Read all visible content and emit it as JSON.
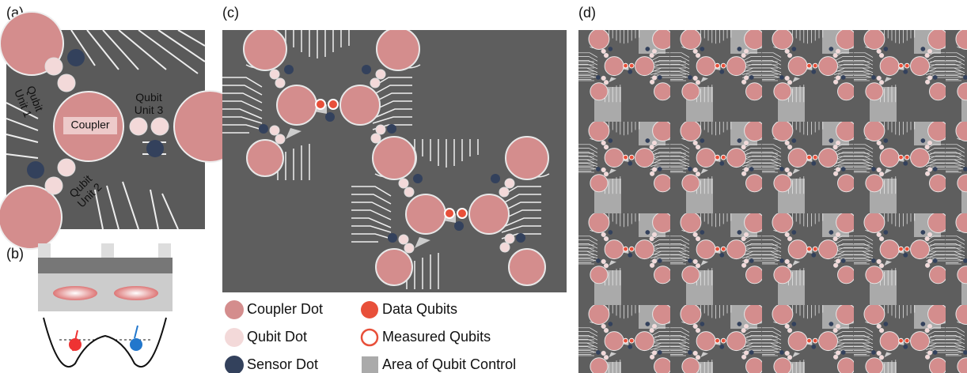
{
  "panels": {
    "a": {
      "label": "(a)",
      "units": [
        [
          "Qubit",
          "Unit 1"
        ],
        [
          "Qubit",
          "Unit 2"
        ],
        [
          "Qubit",
          "Unit 3"
        ]
      ],
      "coupler": "Coupler"
    },
    "b": {
      "label": "(b)"
    },
    "c": {
      "label": "(c)"
    },
    "d": {
      "label": "(d)"
    }
  },
  "legend": [
    "Coupler Dot",
    "Data Qubits",
    "Qubit Dot",
    "Measured Qubits",
    "Sensor Dot",
    "Area of Qubit Control"
  ]
}
